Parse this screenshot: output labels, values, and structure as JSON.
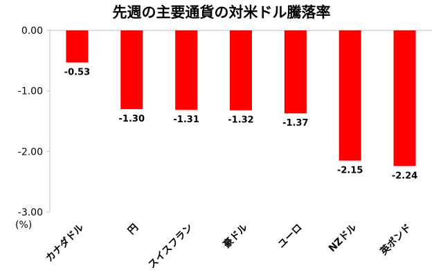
{
  "chart_data": {
    "type": "bar",
    "title": "先週の主要通貨の対米ドル騰落率",
    "unit_label": "(%)",
    "categories": [
      "カナダドル",
      "円",
      "スイスフラン",
      "豪ドル",
      "ユーロ",
      "NZドル",
      "英ポンド"
    ],
    "values": [
      -0.53,
      -1.3,
      -1.31,
      -1.32,
      -1.37,
      -2.15,
      -2.24
    ],
    "data_labels": [
      "-0.53",
      "-1.30",
      "-1.31",
      "-1.32",
      "-1.37",
      "-2.15",
      "-2.24"
    ],
    "ylim": [
      -3.0,
      0.0
    ],
    "yticks": [
      0.0,
      -1.0,
      -2.0,
      -3.0
    ],
    "ytick_labels": [
      "0.00",
      "-1.00",
      "-2.00",
      "-3.00"
    ],
    "bar_color": "#ff0000",
    "grid": false,
    "legend": "none"
  }
}
